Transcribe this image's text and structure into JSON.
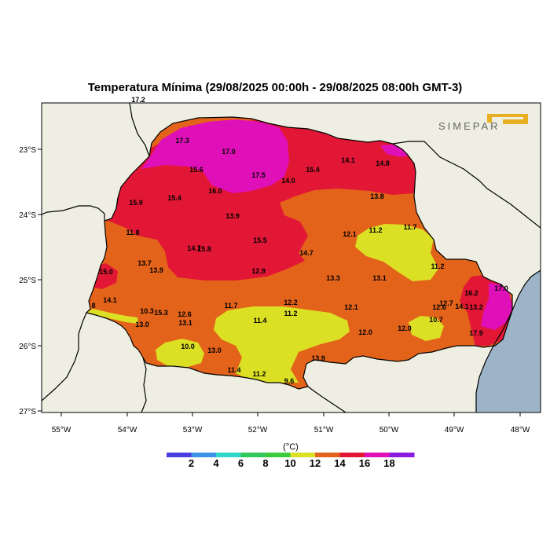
{
  "title": "Temperatura Mínima (29/08/2025 00:00h - 29/08/2025 08:00h GMT-3)",
  "logo": {
    "text": "SIMEPAR",
    "color": "#e8b020"
  },
  "axes": {
    "x_ticks": [
      "55°W",
      "54°W",
      "53°W",
      "52°W",
      "51°W",
      "50°W",
      "49°W",
      "48°W"
    ],
    "y_ticks": [
      "23°S",
      "24°S",
      "25°S",
      "26°S",
      "27°S"
    ]
  },
  "colors": {
    "ocean": "#9db4c8",
    "land": "#eeeee2",
    "t8_10": "#3bcc3b",
    "t10_12": "#dbe024",
    "t12_14": "#e4631a",
    "t14_16": "#e21735",
    "t16_18": "#e010b8",
    "t18_20": "#8a1be0"
  },
  "colorbar": {
    "unit": "(°C)",
    "labels": [
      "2",
      "4",
      "6",
      "8",
      "10",
      "12",
      "14",
      "16",
      "18"
    ],
    "colors": [
      "#4a3ee0",
      "#3c92e4",
      "#2fd8c8",
      "#30c85a",
      "#3bcc3b",
      "#dbe024",
      "#e4631a",
      "#e21735",
      "#e010b8",
      "#8a1be0"
    ]
  },
  "stations": [
    {
      "v": "17.2"
    },
    {
      "v": "17.3"
    },
    {
      "v": "17.0"
    },
    {
      "v": "15.6"
    },
    {
      "v": "17.5"
    },
    {
      "v": "14.0"
    },
    {
      "v": "15.4"
    },
    {
      "v": "14.1"
    },
    {
      "v": "14.8"
    },
    {
      "v": "16.0"
    },
    {
      "v": "15.9"
    },
    {
      "v": "15.4"
    },
    {
      "v": "13.9"
    },
    {
      "v": "13.8"
    },
    {
      "v": "11.8"
    },
    {
      "v": "12.1"
    },
    {
      "v": "11.2"
    },
    {
      "v": "11.7"
    },
    {
      "v": "15.5"
    },
    {
      "v": "13.7"
    },
    {
      "v": "14.7"
    },
    {
      "v": "15.8"
    },
    {
      "v": "14.7"
    },
    {
      "v": "13.9"
    },
    {
      "v": "15.0"
    },
    {
      "v": "12.9"
    },
    {
      "v": "13.3"
    },
    {
      "v": "13.1"
    },
    {
      "v": "11.2"
    },
    {
      "v": "16.2"
    },
    {
      "v": "17.0"
    },
    {
      "v": "14.1"
    },
    {
      "v": "10.3"
    },
    {
      "v": "15.3"
    },
    {
      "v": "12.6"
    },
    {
      "v": "11.7"
    },
    {
      "v": "12.2"
    },
    {
      "v": "12.1"
    },
    {
      "v": "12.6"
    },
    {
      "v": "12.7"
    },
    {
      "v": "14.1"
    },
    {
      "v": "13.2"
    },
    {
      "v": "13.0"
    },
    {
      "v": "13.1"
    },
    {
      "v": "11.4"
    },
    {
      "v": "11.2"
    },
    {
      "v": "10.7"
    },
    {
      "v": "12.0"
    },
    {
      "v": "12.0"
    },
    {
      "v": "17.9"
    },
    {
      "v": "10.0"
    },
    {
      "v": "13.0"
    },
    {
      "v": "13.9"
    },
    {
      "v": "11.4"
    },
    {
      "v": "11.2"
    },
    {
      "v": "9.6"
    },
    {
      "v": "8"
    }
  ]
}
